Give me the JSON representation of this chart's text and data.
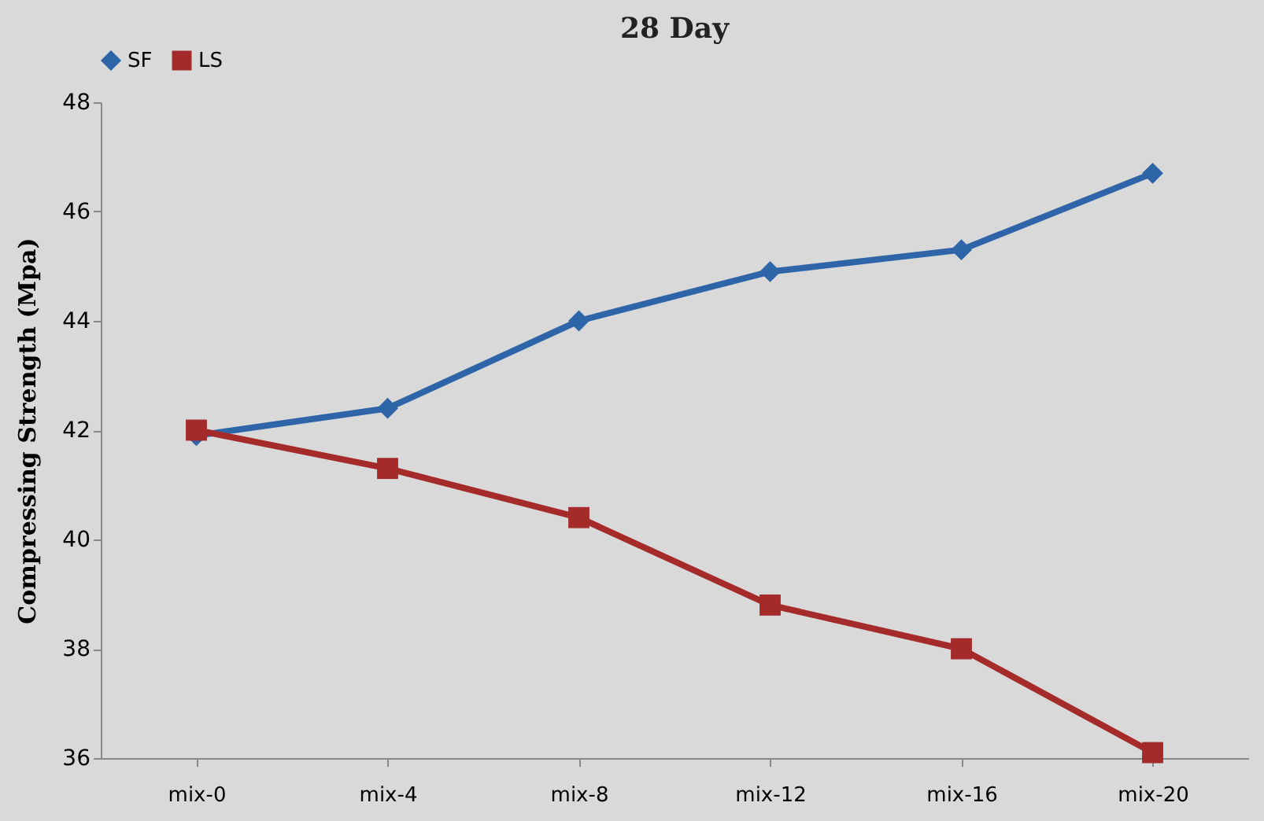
{
  "chart_data": {
    "type": "line",
    "title": "28 Day",
    "ylabel": "Compressing Strength (Mpa)",
    "categories": [
      "mix-0",
      "mix-4",
      "mix-8",
      "mix-12",
      "mix-16",
      "mix-20"
    ],
    "series": [
      {
        "name": "SF",
        "color": "#2e64a8",
        "marker": "diamond",
        "values": [
          41.9,
          42.4,
          44.0,
          44.9,
          45.3,
          46.7
        ]
      },
      {
        "name": "LS",
        "color": "#a52a2a",
        "marker": "square",
        "values": [
          42.0,
          41.3,
          40.4,
          38.8,
          38.0,
          36.1
        ]
      }
    ],
    "ylim": [
      36,
      48
    ],
    "yticks": [
      36,
      38,
      40,
      42,
      44,
      46,
      48
    ],
    "legend": "top"
  }
}
